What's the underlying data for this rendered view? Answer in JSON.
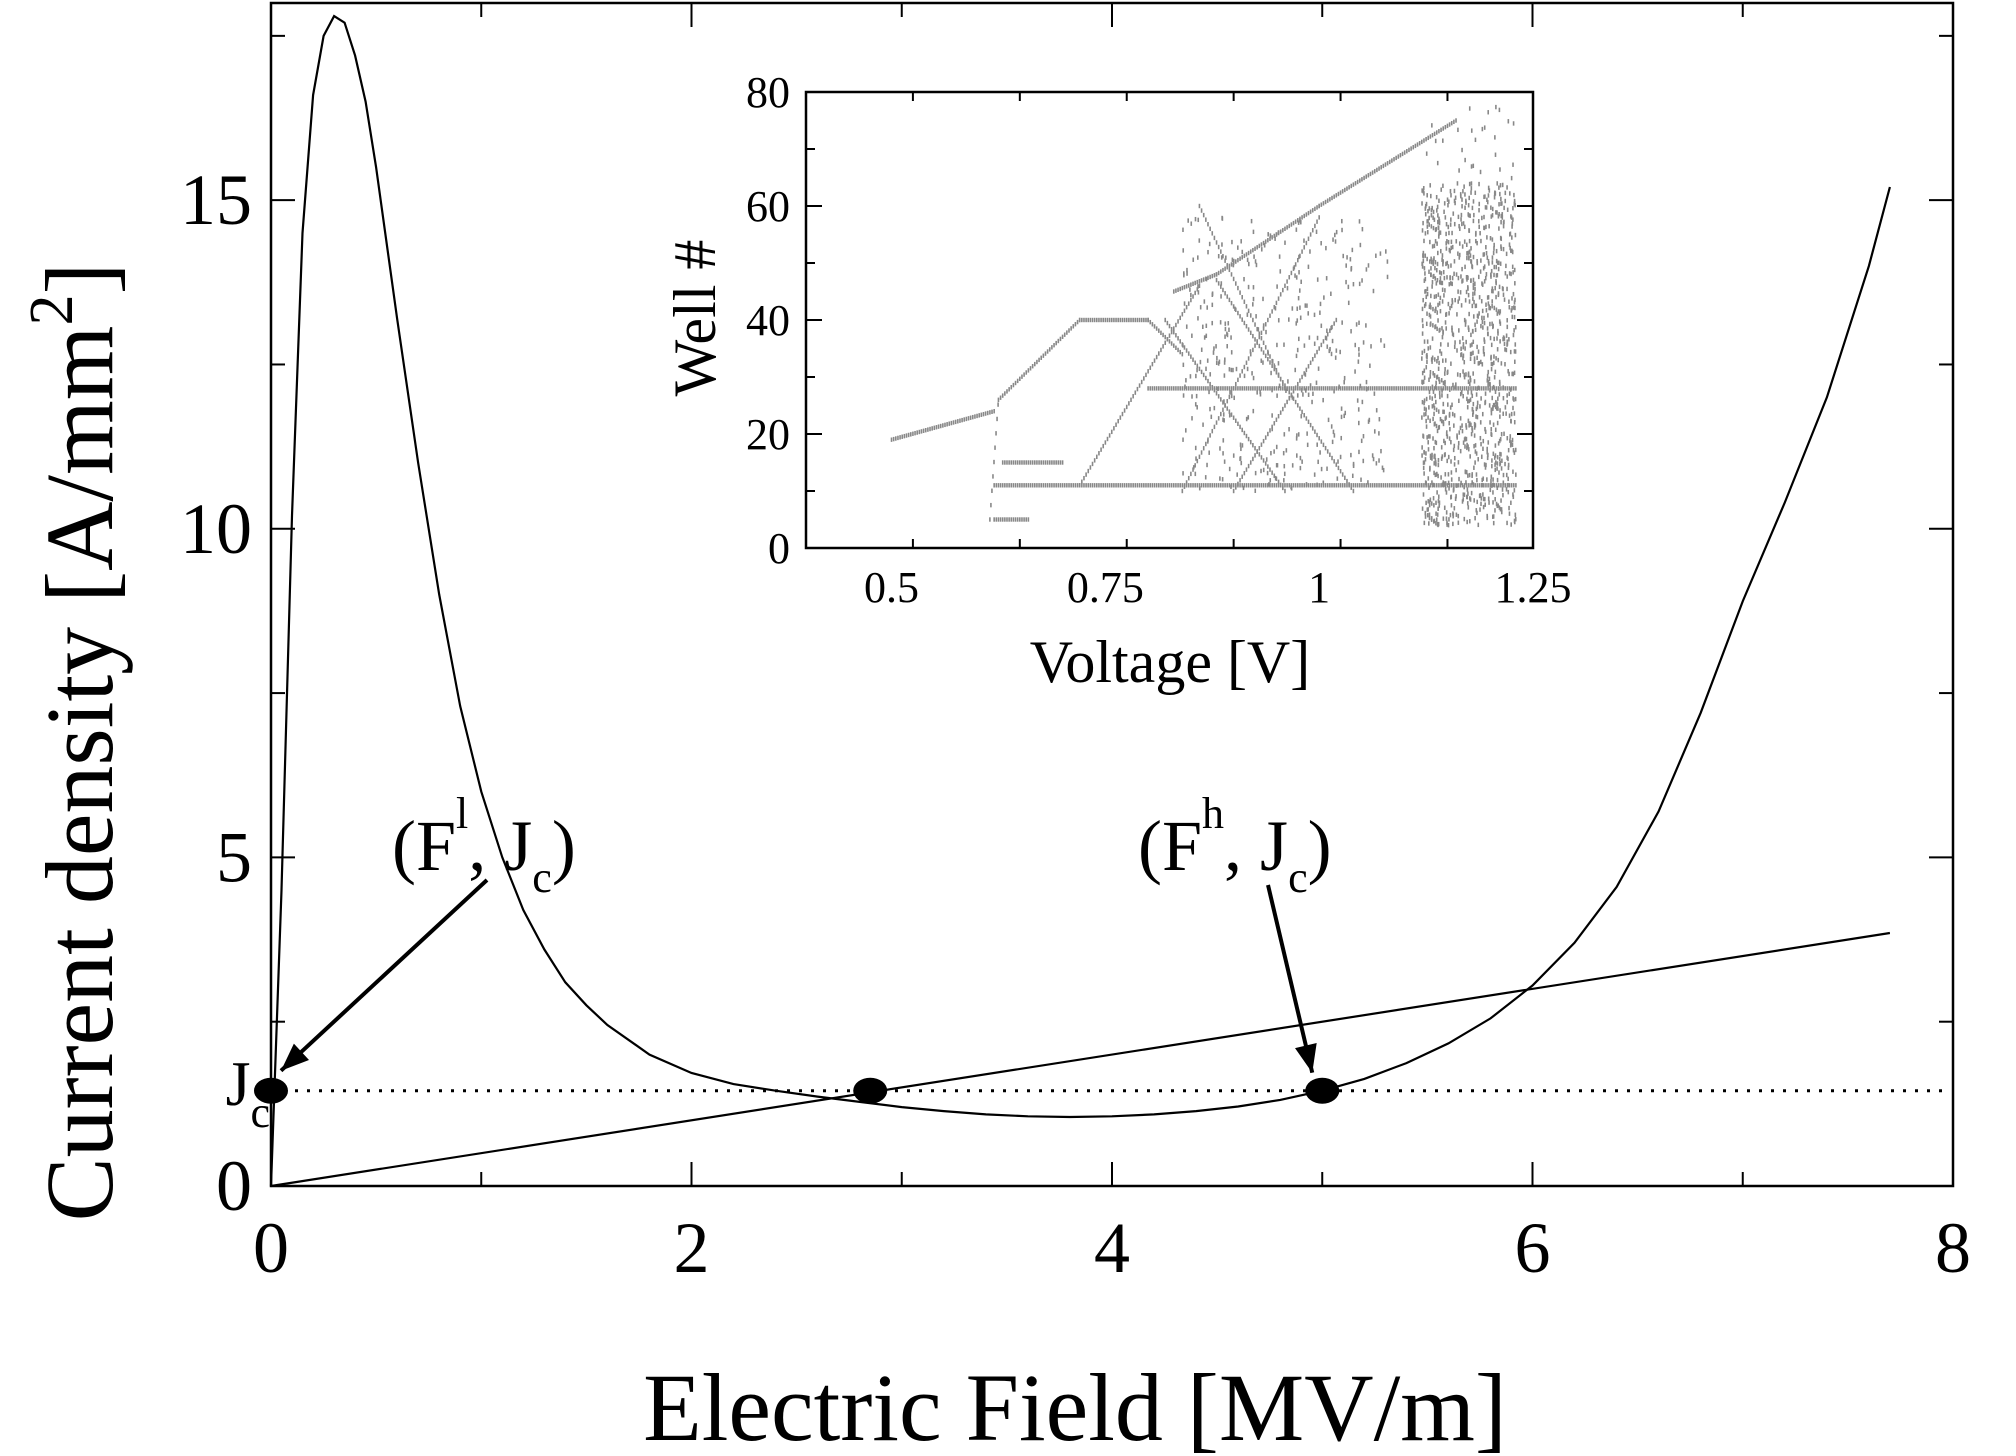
{
  "chart_data": [
    {
      "type": "line",
      "xlabel": "Electric Field [MV/m]",
      "ylabel": "Current density [A/mm",
      "ylabel_sup": "2",
      "ylabel_end": "]",
      "xlim": [
        0,
        8
      ],
      "ylim": [
        0,
        18
      ],
      "x_ticks": [
        0,
        2,
        4,
        6,
        8
      ],
      "y_ticks": [
        0,
        5,
        10,
        15
      ],
      "jc_label": "J",
      "jc_sub": "c",
      "jc_value": 1.45,
      "series": [
        {
          "kind": "curve",
          "x": [
            0,
            0.05,
            0.1,
            0.15,
            0.2,
            0.25,
            0.3,
            0.35,
            0.4,
            0.45,
            0.5,
            0.6,
            0.7,
            0.8,
            0.9,
            1.0,
            1.1,
            1.2,
            1.3,
            1.4,
            1.5,
            1.6,
            1.8,
            2.0,
            2.2,
            2.4,
            2.6,
            2.8,
            3.0,
            3.2,
            3.4,
            3.6,
            3.8,
            4.0,
            4.2,
            4.4,
            4.6,
            4.8,
            5.0,
            5.2,
            5.4,
            5.6,
            5.8,
            6.0,
            6.2,
            6.4,
            6.6,
            6.8,
            7.0,
            7.2,
            7.4,
            7.6,
            7.7
          ],
          "y": [
            0,
            4.5,
            10.2,
            14.5,
            16.6,
            17.5,
            17.8,
            17.7,
            17.2,
            16.5,
            15.5,
            13.2,
            11.0,
            9.0,
            7.3,
            6.0,
            5.0,
            4.2,
            3.6,
            3.1,
            2.75,
            2.45,
            2.0,
            1.72,
            1.55,
            1.45,
            1.36,
            1.28,
            1.2,
            1.14,
            1.09,
            1.06,
            1.05,
            1.06,
            1.09,
            1.14,
            1.21,
            1.31,
            1.45,
            1.63,
            1.87,
            2.17,
            2.55,
            3.05,
            3.7,
            4.55,
            5.7,
            7.2,
            8.9,
            10.4,
            12.0,
            14.0,
            15.2
          ]
        },
        {
          "kind": "load-line",
          "x": [
            0,
            7.7
          ],
          "y": [
            0,
            3.85
          ]
        }
      ],
      "points": [
        {
          "x": 0.0,
          "y": 1.45
        },
        {
          "x": 2.85,
          "y": 1.45
        },
        {
          "x": 5.0,
          "y": 1.45
        }
      ],
      "annotations": [
        {
          "base": "(F",
          "sup": "l",
          "mid": ", J",
          "sub": "c",
          "end": ")"
        },
        {
          "base": "(F",
          "sup": "h",
          "mid": ", J",
          "sub": "c",
          "end": ")"
        }
      ]
    },
    {
      "type": "scatter",
      "xlabel": "Voltage [V]",
      "ylabel": "Well #",
      "xlim": [
        0.4,
        1.25
      ],
      "ylim": [
        0,
        80
      ],
      "x_ticks": [
        "0.5",
        "0.75",
        "1",
        "1.25"
      ],
      "x_tick_values": [
        0.5,
        0.75,
        1,
        1.25
      ],
      "y_ticks": [
        0,
        20,
        40,
        60,
        80
      ],
      "point_color": "#888888"
    }
  ]
}
